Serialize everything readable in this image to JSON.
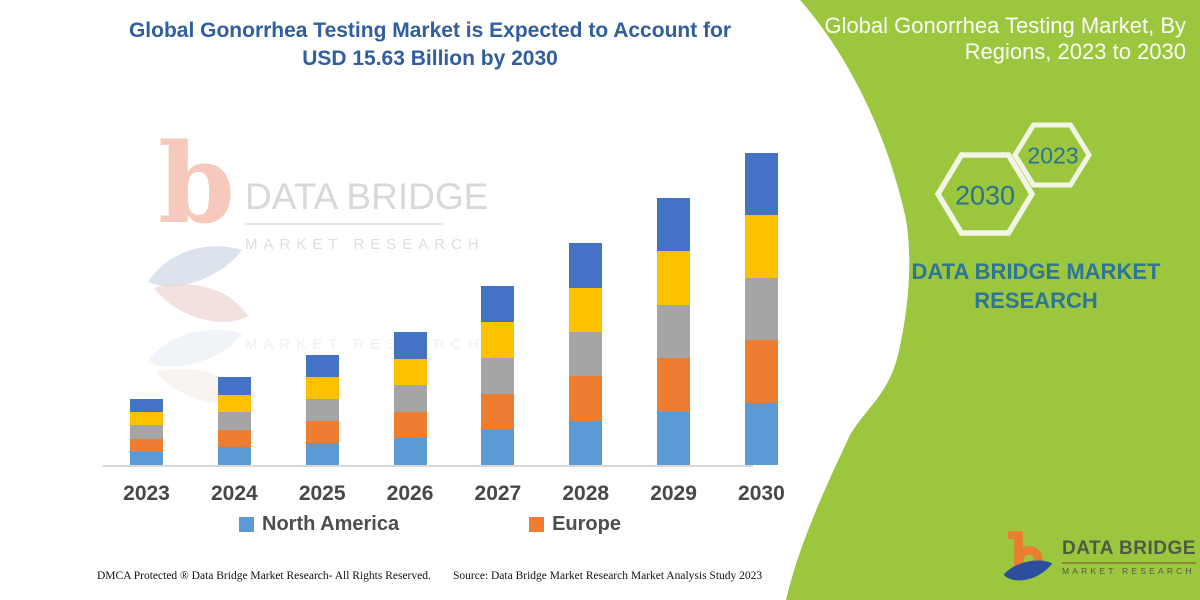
{
  "colors": {
    "panel_green": "#9CC63D",
    "title_blue": "#305E9E",
    "panel_teal_text": "#2D7695",
    "hex_year_text": "#2C7291",
    "hex_stroke": "#F2F5E3",
    "panel_title_white": "#FCFDF8",
    "axis_label_gray": "#474747",
    "legend_label_gray": "#4D4D4D",
    "axis_line_gray": "#D8D8D8",
    "footer_text": "#111111",
    "logo_orange": "#E87E2E",
    "logo_blue": "#2B4F9E",
    "logo_text_olive": "#4F5B44",
    "watermark_gray": "#D8D8D8",
    "watermark_red": "#F3B7A6"
  },
  "header": {
    "title_line1": "Global Gonorrhea Testing Market is Expected to Account for",
    "title_line2": "USD 15.63 Billion by 2030"
  },
  "chart_data": {
    "type": "bar",
    "stacked": true,
    "title": "Global Gonorrhea Testing Market is Expected to Account for USD 15.63 Billion by 2030",
    "unit": "USD Billion",
    "categories": [
      "2023",
      "2024",
      "2025",
      "2026",
      "2027",
      "2028",
      "2029",
      "2030"
    ],
    "series": [
      {
        "name": "North America",
        "color": "#5B9BD5",
        "values": [
          0.66,
          0.88,
          1.1,
          1.33,
          1.79,
          2.22,
          2.68,
          3.126
        ]
      },
      {
        "name": "Europe",
        "color": "#ED7D31",
        "values": [
          0.66,
          0.88,
          1.1,
          1.33,
          1.79,
          2.22,
          2.68,
          3.126
        ]
      },
      {
        "name": "",
        "color": "#A5A5A5",
        "values": [
          0.66,
          0.88,
          1.1,
          1.33,
          1.79,
          2.22,
          2.68,
          3.126
        ]
      },
      {
        "name": "",
        "color": "#FFC000",
        "values": [
          0.66,
          0.88,
          1.1,
          1.33,
          1.79,
          2.22,
          2.68,
          3.126
        ]
      },
      {
        "name": "",
        "color": "#4472C4",
        "values": [
          0.66,
          0.88,
          1.1,
          1.33,
          1.79,
          2.22,
          2.68,
          3.126
        ]
      }
    ],
    "totals": [
      3.3,
      4.4,
      5.5,
      6.65,
      8.95,
      11.1,
      13.4,
      15.63
    ],
    "ylim": [
      0,
      15.63
    ],
    "gridlines": false,
    "y_axis_visible": false,
    "legend_position": "bottom"
  },
  "watermark": {
    "glyph": "b",
    "brand": "DATA BRIDGE",
    "subbrand": "MARKET RESEARCH",
    "subbrand_echo": "MARKET RESEARCH"
  },
  "side_panel": {
    "title_line1": "Global Gonorrhea Testing Market, By",
    "title_line2": "Regions, 2023 to 2030",
    "hexagons": [
      {
        "label": "2030"
      },
      {
        "label": "2023"
      }
    ],
    "brand_line1": "DATA BRIDGE MARKET",
    "brand_line2": "RESEARCH",
    "logo": {
      "brand": "DATA BRIDGE",
      "subbrand": "MARKET RESEARCH"
    }
  },
  "footer": {
    "left": "DMCA Protected ® Data Bridge Market Research-  All Rights Reserved.",
    "right": "Source: Data Bridge Market Research  Market Analysis Study 2023"
  }
}
